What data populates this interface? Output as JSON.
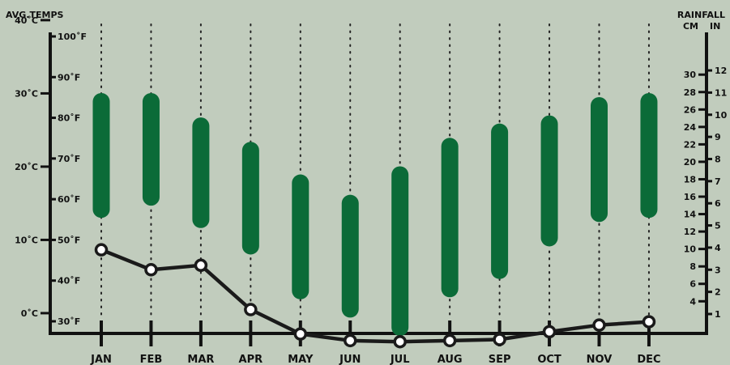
{
  "chart_data": {
    "type": "range-bar-and-line",
    "left_axis_title": "AVG.TEMPS",
    "right_axis_title": "RAINFALL",
    "right_axis_units": {
      "cm": "CM",
      "in": "IN"
    },
    "categories": [
      "JAN",
      "FEB",
      "MAR",
      "APR",
      "MAY",
      "JUN",
      "JUL",
      "AUG",
      "SEP",
      "OCT",
      "NOV",
      "DEC"
    ],
    "celsius_ticks": [
      {
        "value": 40,
        "label": "40˚C"
      },
      {
        "value": 30,
        "label": "30˚C"
      },
      {
        "value": 20,
        "label": "20˚C"
      },
      {
        "value": 10,
        "label": "10˚C"
      },
      {
        "value": 0,
        "label": "0˚C"
      }
    ],
    "fahrenheit_ticks": [
      {
        "value": 100,
        "label": "100˚F"
      },
      {
        "value": 90,
        "label": "90˚F"
      },
      {
        "value": 80,
        "label": "80˚F"
      },
      {
        "value": 70,
        "label": "70˚F"
      },
      {
        "value": 60,
        "label": "60˚F"
      },
      {
        "value": 50,
        "label": "50˚F"
      },
      {
        "value": 40,
        "label": "40˚F"
      },
      {
        "value": 30,
        "label": "30˚F"
      }
    ],
    "inch_ticks": [
      {
        "value": 12,
        "label": "12"
      },
      {
        "value": 11,
        "label": "11"
      },
      {
        "value": 10,
        "label": "10"
      },
      {
        "value": 9,
        "label": "9"
      },
      {
        "value": 8,
        "label": "8"
      },
      {
        "value": 7,
        "label": "7"
      },
      {
        "value": 6,
        "label": "6"
      },
      {
        "value": 5,
        "label": "5"
      },
      {
        "value": 4,
        "label": "4"
      },
      {
        "value": 3,
        "label": "3"
      },
      {
        "value": 2,
        "label": "2"
      },
      {
        "value": 1,
        "label": "1"
      }
    ],
    "cm_ticks": [
      {
        "value": 30,
        "label": "30"
      },
      {
        "value": 28,
        "label": "28"
      },
      {
        "value": 26,
        "label": "26"
      },
      {
        "value": 24,
        "label": "24"
      },
      {
        "value": 22,
        "label": "22"
      },
      {
        "value": 20,
        "label": "20"
      },
      {
        "value": 18,
        "label": "18"
      },
      {
        "value": 16,
        "label": "16"
      },
      {
        "value": 14,
        "label": "14"
      },
      {
        "value": 12,
        "label": "12"
      },
      {
        "value": 10,
        "label": "10"
      },
      {
        "value": 8,
        "label": "8"
      },
      {
        "value": 6,
        "label": "6"
      },
      {
        "value": 4,
        "label": "4"
      }
    ],
    "temp_range_f": [
      {
        "low": 57.5,
        "high": 84.0
      },
      {
        "low": 60.5,
        "high": 84.0
      },
      {
        "low": 55.0,
        "high": 78.0
      },
      {
        "low": 48.5,
        "high": 72.0
      },
      {
        "low": 37.5,
        "high": 64.0
      },
      {
        "low": 33.0,
        "high": 59.0
      },
      {
        "low": 28.5,
        "high": 66.0
      },
      {
        "low": 38.0,
        "high": 73.0
      },
      {
        "low": 42.5,
        "high": 76.5
      },
      {
        "low": 50.5,
        "high": 78.5
      },
      {
        "low": 56.5,
        "high": 83.0
      },
      {
        "low": 57.5,
        "high": 84.0
      }
    ],
    "rainfall_in": [
      3.9,
      3.0,
      3.2,
      1.2,
      0.1,
      -0.2,
      -0.25,
      -0.2,
      -0.15,
      0.2,
      0.5,
      0.65
    ],
    "colors": {
      "background": "#c1ccbd",
      "bar": "#0b6b38",
      "line": "#1a1a1a",
      "axis": "#111111"
    },
    "grid": "dotted vertical lines at each month"
  }
}
